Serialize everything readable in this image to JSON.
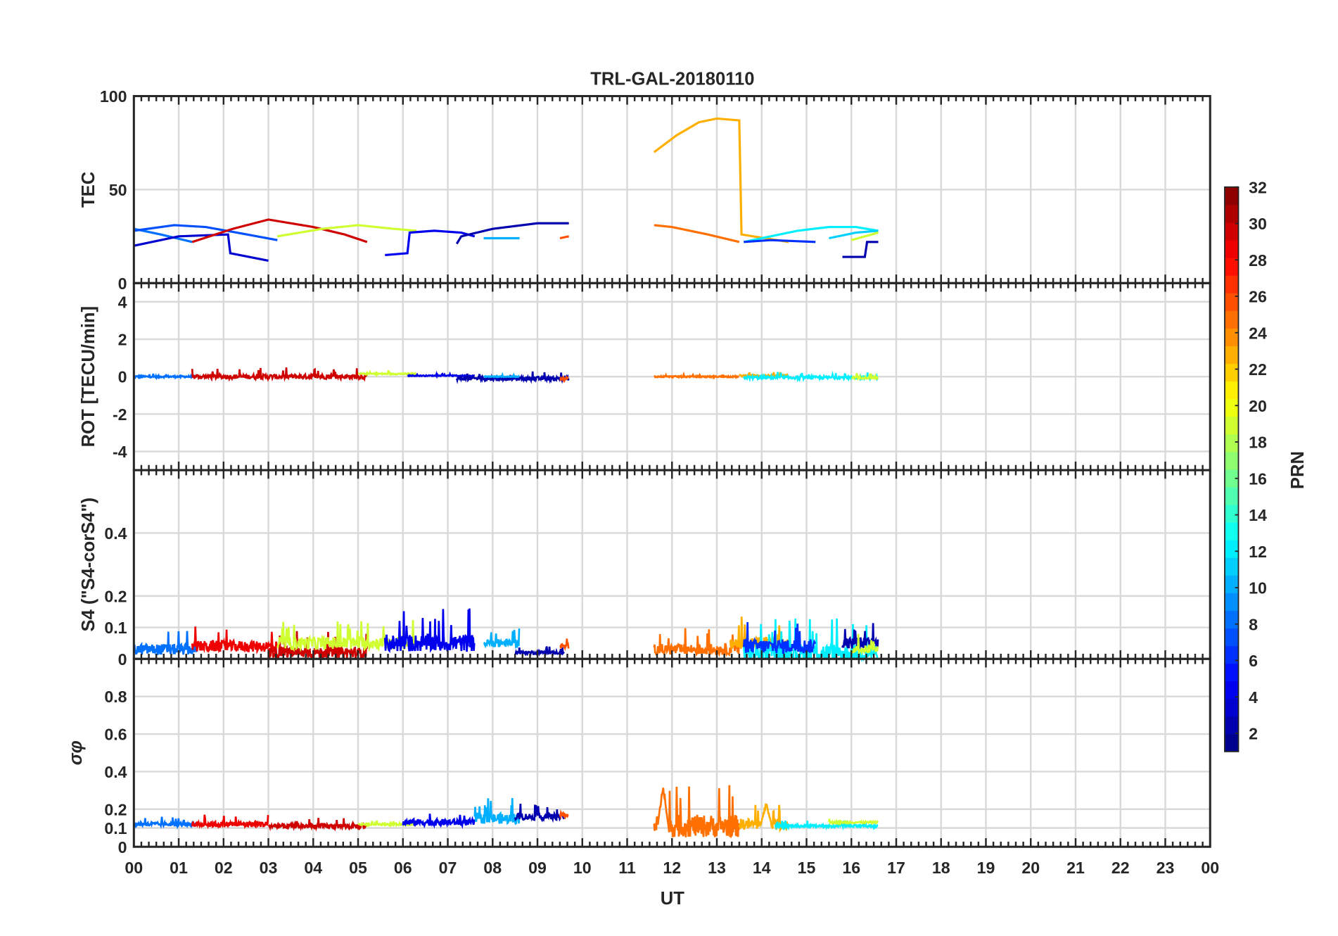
{
  "chart_data": {
    "type": "line",
    "title": "TRL-GAL-20180110",
    "xlabel": "UT",
    "xlim": [
      0,
      24
    ],
    "x_tick_labels": [
      "00",
      "01",
      "02",
      "03",
      "04",
      "05",
      "06",
      "07",
      "08",
      "09",
      "10",
      "11",
      "12",
      "13",
      "14",
      "15",
      "16",
      "17",
      "18",
      "19",
      "20",
      "21",
      "22",
      "23",
      "00"
    ],
    "grid": true,
    "colorbar": {
      "label": "PRN",
      "range": [
        1,
        32
      ],
      "colormap": "jet",
      "tick_labels": [
        "2",
        "4",
        "6",
        "8",
        "10",
        "12",
        "14",
        "16",
        "18",
        "20",
        "22",
        "24",
        "26",
        "28",
        "30",
        "32"
      ]
    },
    "panels": [
      {
        "id": "tec",
        "ylabel": "TEC",
        "ylim": [
          0,
          100
        ],
        "yticks": [
          0,
          50,
          100
        ],
        "ytick_labels": [
          "0",
          "50",
          "100"
        ],
        "series": [
          {
            "prn": 8,
            "points": [
              [
                0,
                29
              ],
              [
                0.6,
                26
              ],
              [
                1.3,
                22
              ]
            ]
          },
          {
            "prn": 7,
            "points": [
              [
                0,
                28
              ],
              [
                0.9,
                31
              ],
              [
                1.6,
                30
              ],
              [
                2.3,
                27
              ],
              [
                3.2,
                23
              ]
            ]
          },
          {
            "prn": 3,
            "points": [
              [
                0,
                20
              ],
              [
                1,
                25
              ],
              [
                2.1,
                26
              ],
              [
                2.15,
                16
              ],
              [
                3,
                12
              ]
            ]
          },
          {
            "prn": 30,
            "points": [
              [
                1.3,
                22
              ],
              [
                2.2,
                29
              ],
              [
                3,
                34
              ],
              [
                4,
                30
              ],
              [
                4.7,
                26
              ],
              [
                5.2,
                22
              ]
            ]
          },
          {
            "prn": 19,
            "points": [
              [
                3.2,
                25
              ],
              [
                4.2,
                29
              ],
              [
                5,
                31
              ],
              [
                5.8,
                29
              ],
              [
                6.3,
                28
              ]
            ]
          },
          {
            "prn": 4,
            "points": [
              [
                5.6,
                15
              ],
              [
                6.1,
                16
              ],
              [
                6.15,
                27
              ],
              [
                6.7,
                28
              ],
              [
                7.3,
                27
              ],
              [
                7.6,
                25
              ]
            ]
          },
          {
            "prn": 2,
            "points": [
              [
                7.2,
                21
              ],
              [
                7.3,
                25
              ],
              [
                8,
                29
              ],
              [
                9,
                32
              ],
              [
                9.7,
                32
              ]
            ]
          },
          {
            "prn": 10,
            "points": [
              [
                7.8,
                24
              ],
              [
                8.6,
                24
              ]
            ]
          },
          {
            "prn": 26,
            "points": [
              [
                9.5,
                24
              ],
              [
                9.7,
                25
              ]
            ]
          },
          {
            "prn": 23,
            "points": [
              [
                11.6,
                70
              ],
              [
                12.1,
                79
              ],
              [
                12.6,
                86
              ],
              [
                13,
                88
              ],
              [
                13.5,
                87
              ],
              [
                13.55,
                26
              ],
              [
                14.6,
                22
              ]
            ]
          },
          {
            "prn": 25,
            "points": [
              [
                11.6,
                31
              ],
              [
                12,
                30
              ],
              [
                12.8,
                26
              ],
              [
                13.5,
                22
              ]
            ]
          },
          {
            "prn": 12,
            "points": [
              [
                13.6,
                22
              ],
              [
                14.2,
                25
              ],
              [
                14.8,
                28
              ],
              [
                15.5,
                30
              ],
              [
                16.1,
                30
              ],
              [
                16.6,
                28
              ]
            ]
          },
          {
            "prn": 6,
            "points": [
              [
                13.6,
                22
              ],
              [
                14.2,
                23
              ],
              [
                15.2,
                22
              ]
            ]
          },
          {
            "prn": 11,
            "points": [
              [
                15.5,
                24
              ],
              [
                16.1,
                27
              ],
              [
                16.6,
                28
              ]
            ]
          },
          {
            "prn": 19,
            "points": [
              [
                16,
                23
              ],
              [
                16.6,
                27
              ]
            ]
          },
          {
            "prn": 2,
            "points": [
              [
                15.8,
                14
              ],
              [
                16.3,
                14
              ],
              [
                16.35,
                22
              ],
              [
                16.6,
                22
              ]
            ]
          }
        ]
      },
      {
        "id": "rot",
        "ylabel": "ROT [TECU/min]",
        "ylim": [
          -5,
          5
        ],
        "yticks": [
          -4,
          -2,
          0,
          2,
          4
        ],
        "ytick_labels": [
          "-4",
          "-2",
          "0",
          "2",
          "4"
        ],
        "segments": [
          {
            "prn": 8,
            "start": 0,
            "end": 1.4,
            "base": 0,
            "peak": 0.2
          },
          {
            "prn": 30,
            "start": 1.3,
            "end": 5.2,
            "base": 0,
            "peak": 0.5
          },
          {
            "prn": 19,
            "start": 5.0,
            "end": 6.3,
            "base": 0.15,
            "peak": 0.3
          },
          {
            "prn": 4,
            "start": 6.1,
            "end": 7.6,
            "base": 0.05,
            "peak": 0.15
          },
          {
            "prn": 2,
            "start": 7.2,
            "end": 9.7,
            "base": -0.1,
            "peak": 0.3
          },
          {
            "prn": 10,
            "start": 7.8,
            "end": 8.6,
            "base": 0,
            "peak": 0.1
          },
          {
            "prn": 26,
            "start": 9.5,
            "end": 9.7,
            "base": -0.1,
            "peak": 0.2
          },
          {
            "prn": 25,
            "start": 11.6,
            "end": 13.5,
            "base": 0,
            "peak": 0.15
          },
          {
            "prn": 23,
            "start": 13.5,
            "end": 14.6,
            "base": 0.05,
            "peak": 0.25
          },
          {
            "prn": 12,
            "start": 13.6,
            "end": 16.6,
            "base": -0.05,
            "peak": 0.25
          },
          {
            "prn": 19,
            "start": 16,
            "end": 16.6,
            "base": -0.05,
            "peak": 0.2
          }
        ]
      },
      {
        "id": "s4",
        "ylabel": "S4 (\"S4-corS4\")",
        "ylim": [
          0,
          0.6
        ],
        "yticks": [
          0,
          0.1,
          0.2,
          0.4
        ],
        "ytick_labels": [
          "0",
          "0.1",
          "0.2",
          "0.4"
        ],
        "segments": [
          {
            "prn": 8,
            "start": 0,
            "end": 1.4,
            "base": 0.03,
            "peak": 0.1
          },
          {
            "prn": 29,
            "start": 1.3,
            "end": 3.2,
            "base": 0.04,
            "peak": 0.11
          },
          {
            "prn": 30,
            "start": 3.0,
            "end": 5.2,
            "base": 0.02,
            "peak": 0.09
          },
          {
            "prn": 19,
            "start": 3.2,
            "end": 6.3,
            "base": 0.05,
            "peak": 0.13
          },
          {
            "prn": 4,
            "start": 5.6,
            "end": 7.6,
            "base": 0.05,
            "peak": 0.16
          },
          {
            "prn": 10,
            "start": 7.8,
            "end": 8.6,
            "base": 0.05,
            "peak": 0.1
          },
          {
            "prn": 2,
            "start": 8.5,
            "end": 9.6,
            "base": 0.02,
            "peak": 0.04
          },
          {
            "prn": 26,
            "start": 9.5,
            "end": 9.7,
            "base": 0.04,
            "peak": 0.07
          },
          {
            "prn": 25,
            "start": 11.6,
            "end": 13.5,
            "base": 0.03,
            "peak": 0.1
          },
          {
            "prn": 23,
            "start": 13.3,
            "end": 14.6,
            "base": 0.05,
            "peak": 0.14
          },
          {
            "prn": 12,
            "start": 13.6,
            "end": 16.6,
            "base": 0.02,
            "peak": 0.13
          },
          {
            "prn": 6,
            "start": 13.6,
            "end": 15.2,
            "base": 0.04,
            "peak": 0.13
          },
          {
            "prn": 2,
            "start": 15.8,
            "end": 16.6,
            "base": 0.05,
            "peak": 0.12
          },
          {
            "prn": 19,
            "start": 16.0,
            "end": 16.6,
            "base": 0.03,
            "peak": 0.08
          }
        ]
      },
      {
        "id": "sigma",
        "ylabel": "σφ",
        "ylim": [
          0,
          1
        ],
        "yticks": [
          0,
          0.1,
          0.2,
          0.4,
          0.6,
          0.8
        ],
        "ytick_labels": [
          "0",
          "0.1",
          "0.2",
          "0.4",
          "0.6",
          "0.8"
        ],
        "segments": [
          {
            "prn": 8,
            "start": 0,
            "end": 1.4,
            "base": 0.12,
            "peak": 0.16
          },
          {
            "prn": 29,
            "start": 1.3,
            "end": 3.0,
            "base": 0.12,
            "peak": 0.18
          },
          {
            "prn": 30,
            "start": 3.0,
            "end": 5.2,
            "base": 0.11,
            "peak": 0.16
          },
          {
            "prn": 19,
            "start": 5.0,
            "end": 6.3,
            "base": 0.12,
            "peak": 0.14
          },
          {
            "prn": 4,
            "start": 6.0,
            "end": 7.6,
            "base": 0.13,
            "peak": 0.2
          },
          {
            "prn": 10,
            "start": 7.6,
            "end": 8.6,
            "base": 0.15,
            "peak": 0.26
          },
          {
            "prn": 2,
            "start": 8.5,
            "end": 9.6,
            "base": 0.16,
            "peak": 0.23
          },
          {
            "prn": 26,
            "start": 9.5,
            "end": 9.7,
            "base": 0.17,
            "peak": 0.22
          },
          {
            "prn": 25,
            "start": 11.6,
            "end": 13.5,
            "base": 0.11,
            "peak": 0.35,
            "spike_at": 11.8
          },
          {
            "prn": 23,
            "start": 13.5,
            "end": 14.6,
            "base": 0.12,
            "peak": 0.24,
            "spike_at": 14.1
          },
          {
            "prn": 12,
            "start": 14.3,
            "end": 16.6,
            "base": 0.11,
            "peak": 0.14
          },
          {
            "prn": 19,
            "start": 15.5,
            "end": 16.6,
            "base": 0.13,
            "peak": 0.15
          }
        ]
      }
    ]
  }
}
